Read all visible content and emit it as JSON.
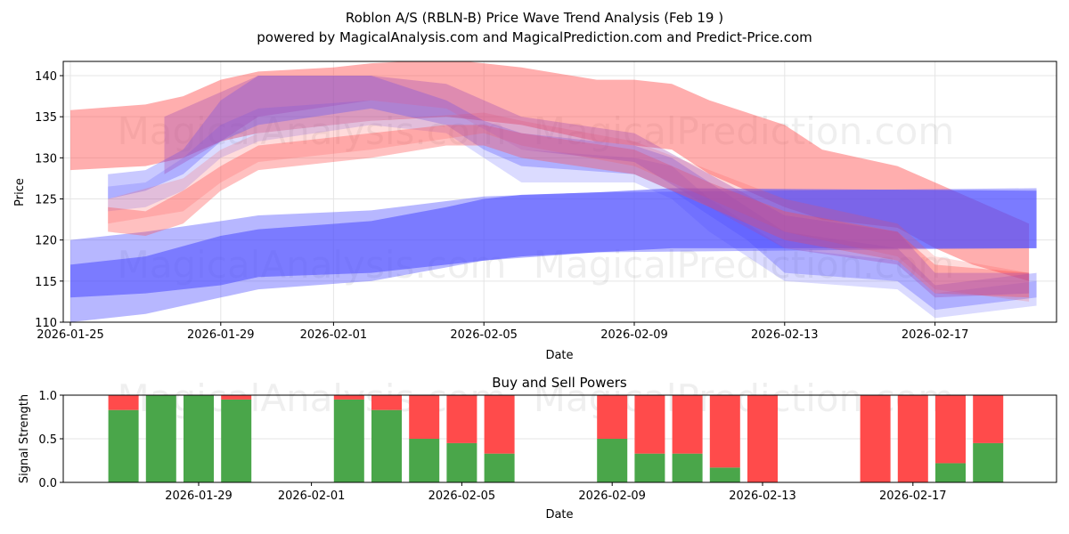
{
  "title": "Roblon A/S (RBLN-B) Price Wave Trend Analysis (Feb 19 )",
  "subtitle": "powered by MagicalAnalysis.com and MagicalPrediction.com and Predict-Price.com",
  "watermarks": [
    "MagicalAnalysis.com",
    "MagicalPrediction.com"
  ],
  "colors": {
    "red": "#ff4b4b",
    "blue": "#4b4bff",
    "buy": "#4aa64a",
    "sell": "#ff4b4b"
  },
  "chart_data": [
    {
      "type": "area",
      "title": "",
      "xlabel": "Date",
      "ylabel": "Price",
      "ylim": [
        110,
        141.8
      ],
      "x_start": "2026-01-25",
      "x_tick_labels": [
        "2026-01-25",
        "2026-01-29",
        "2026-02-01",
        "2026-02-05",
        "2026-02-09",
        "2026-02-13",
        "2026-02-17"
      ],
      "x_tick_days": [
        0,
        4,
        7,
        11,
        15,
        19,
        23
      ],
      "y_ticks": [
        110,
        115,
        120,
        125,
        130,
        135,
        140
      ],
      "grid": true,
      "bands_note": "each band: points [day offset from x_start, low, high]",
      "bands": [
        {
          "color": "red",
          "opacity": 0.45,
          "points": [
            [
              0,
              128.5,
              135.8
            ],
            [
              2,
              129,
              136.5
            ],
            [
              3,
              130,
              137.5
            ],
            [
              4,
              132,
              139.5
            ],
            [
              5,
              133,
              140.5
            ],
            [
              7,
              134,
              141
            ],
            [
              8,
              134.5,
              141.5
            ],
            [
              10,
              135,
              142
            ],
            [
              12,
              134,
              141
            ],
            [
              14,
              132,
              139.5
            ],
            [
              15,
              131.5,
              139.5
            ],
            [
              16,
              131,
              139
            ],
            [
              17,
              128,
              137
            ],
            [
              18,
              126,
              135.5
            ],
            [
              19,
              124,
              134
            ],
            [
              20,
              122.5,
              131
            ],
            [
              22,
              121.5,
              129
            ],
            [
              23,
              119,
              127
            ],
            [
              24,
              117,
              125
            ],
            [
              25.5,
              115,
              122
            ]
          ]
        },
        {
          "color": "blue",
          "opacity": 0.4,
          "points": [
            [
              0,
              110,
              120
            ],
            [
              2,
              111,
              121
            ],
            [
              4,
              113,
              122.3
            ],
            [
              5,
              114,
              123
            ],
            [
              8,
              115,
              123.6
            ],
            [
              11,
              117.5,
              125.3
            ],
            [
              14,
              118.5,
              125.8
            ],
            [
              25.7,
              119,
              126.3
            ]
          ]
        },
        {
          "color": "blue",
          "opacity": 0.55,
          "points": [
            [
              0,
              113,
              117
            ],
            [
              2,
              113.5,
              118
            ],
            [
              4,
              114.5,
              120.5
            ],
            [
              5,
              115.5,
              121.3
            ],
            [
              8,
              116,
              122.3
            ],
            [
              10,
              117,
              124
            ],
            [
              11,
              117.5,
              125
            ],
            [
              12,
              118,
              125.5
            ],
            [
              14,
              118.5,
              125.8
            ],
            [
              16,
              119,
              126.3
            ],
            [
              25.7,
              119,
              126
            ]
          ]
        },
        {
          "color": "blue",
          "opacity": 0.3,
          "points": [
            [
              1,
              125,
              128
            ],
            [
              2,
              126,
              128.5
            ],
            [
              3,
              128,
              131
            ],
            [
              4,
              132,
              137
            ],
            [
              5,
              134,
              140
            ],
            [
              8,
              136,
              140
            ],
            [
              10,
              134,
              137
            ],
            [
              11,
              131,
              134.5
            ],
            [
              12,
              129,
              133
            ],
            [
              15,
              128,
              131.5
            ],
            [
              16,
              126,
              130
            ],
            [
              17,
              123,
              127
            ],
            [
              18,
              120,
              124
            ],
            [
              19,
              116,
              121
            ],
            [
              22,
              115,
              119
            ],
            [
              23,
              111.5,
              114.5
            ],
            [
              25.7,
              113,
              116
            ]
          ]
        },
        {
          "color": "blue",
          "opacity": 0.2,
          "points": [
            [
              1,
              123.5,
              126.5
            ],
            [
              2,
              124,
              127
            ],
            [
              3,
              126,
              130
            ],
            [
              4,
              130,
              134
            ],
            [
              5,
              132,
              136
            ],
            [
              8,
              134,
              137
            ],
            [
              10,
              133,
              136
            ],
            [
              11,
              130,
              133.5
            ],
            [
              12,
              127,
              131
            ],
            [
              15,
              127,
              130
            ],
            [
              16,
              125,
              129
            ],
            [
              17,
              121,
              125
            ],
            [
              18,
              118,
              122
            ],
            [
              19,
              115,
              119
            ],
            [
              22,
              114,
              117.5
            ],
            [
              23,
              110.5,
              113.5
            ],
            [
              25.7,
              112,
              115
            ]
          ]
        },
        {
          "color": "red",
          "opacity": 0.35,
          "points": [
            [
              1,
              121,
              124
            ],
            [
              2,
              120.5,
              123.5
            ],
            [
              3,
              122,
              126
            ],
            [
              4,
              126,
              129
            ],
            [
              5,
              128.5,
              131.5
            ],
            [
              8,
              130,
              133
            ],
            [
              10,
              131.5,
              134
            ],
            [
              11,
              131.5,
              134
            ],
            [
              12,
              130,
              133
            ],
            [
              15,
              128,
              131
            ],
            [
              17,
              124,
              127
            ],
            [
              19,
              120,
              123.5
            ],
            [
              22,
              117.5,
              121
            ],
            [
              23,
              113.5,
              117
            ],
            [
              25.5,
              113,
              116
            ]
          ]
        },
        {
          "color": "red",
          "opacity": 0.2,
          "points": [
            [
              1,
              122,
              125
            ],
            [
              3,
              123.5,
              127.5
            ],
            [
              4,
              127,
              131
            ],
            [
              5,
              129.5,
              133
            ],
            [
              8,
              131,
              134.5
            ],
            [
              11,
              133,
              135.5
            ],
            [
              12,
              131.5,
              134.5
            ],
            [
              15,
              129,
              132
            ],
            [
              17,
              125,
              128.5
            ],
            [
              19,
              121,
              125
            ],
            [
              22,
              118,
              122
            ],
            [
              23,
              114,
              118
            ],
            [
              25.5,
              112.5,
              116
            ]
          ]
        },
        {
          "color": "purple",
          "opacity": 0.35,
          "points": [
            [
              2.5,
              128,
              135
            ],
            [
              4,
              132,
              138
            ],
            [
              5,
              135,
              140
            ],
            [
              8,
              137,
              140
            ],
            [
              10,
              136,
              139
            ],
            [
              12,
              131,
              135
            ],
            [
              15,
              129.5,
              133
            ],
            [
              17,
              124,
              128
            ],
            [
              19,
              119,
              123
            ],
            [
              22,
              117,
              121
            ],
            [
              23,
              113,
              116
            ],
            [
              25.5,
              113.5,
              116
            ]
          ]
        }
      ]
    },
    {
      "type": "bar",
      "title": "Buy and Sell Powers",
      "xlabel": "Date",
      "ylabel": "Signal Strength",
      "ylim": [
        0,
        1.0
      ],
      "y_ticks": [
        "0.0",
        "0.5",
        "1.0"
      ],
      "x_tick_labels": [
        "2026-01-29",
        "2026-02-01",
        "2026-02-05",
        "2026-02-09",
        "2026-02-13",
        "2026-02-17"
      ],
      "x_tick_days": [
        4,
        7,
        11,
        15,
        19,
        23
      ],
      "categories": [
        "2026-01-27",
        "2026-01-28",
        "2026-01-29",
        "2026-01-30",
        "2026-02-02",
        "2026-02-03",
        "2026-02-04",
        "2026-02-05",
        "2026-02-06",
        "2026-02-09",
        "2026-02-10",
        "2026-02-11",
        "2026-02-12",
        "2026-02-13",
        "2026-02-16",
        "2026-02-17",
        "2026-02-18",
        "2026-02-19"
      ],
      "days": [
        2,
        3,
        4,
        5,
        8,
        9,
        10,
        11,
        12,
        15,
        16,
        17,
        18,
        19,
        22,
        23,
        24,
        25
      ],
      "series": [
        {
          "name": "Buy",
          "values": [
            0.83,
            1.0,
            1.0,
            0.95,
            0.95,
            0.83,
            0.5,
            0.45,
            0.33,
            0.5,
            0.33,
            0.33,
            0.17,
            0.0,
            0.0,
            0.0,
            0.22,
            0.45
          ]
        },
        {
          "name": "Sell",
          "values": [
            0.17,
            0.0,
            0.0,
            0.05,
            0.05,
            0.17,
            0.5,
            0.55,
            0.67,
            0.5,
            0.67,
            0.67,
            0.83,
            1.0,
            1.0,
            1.0,
            0.78,
            0.55
          ]
        }
      ]
    }
  ]
}
